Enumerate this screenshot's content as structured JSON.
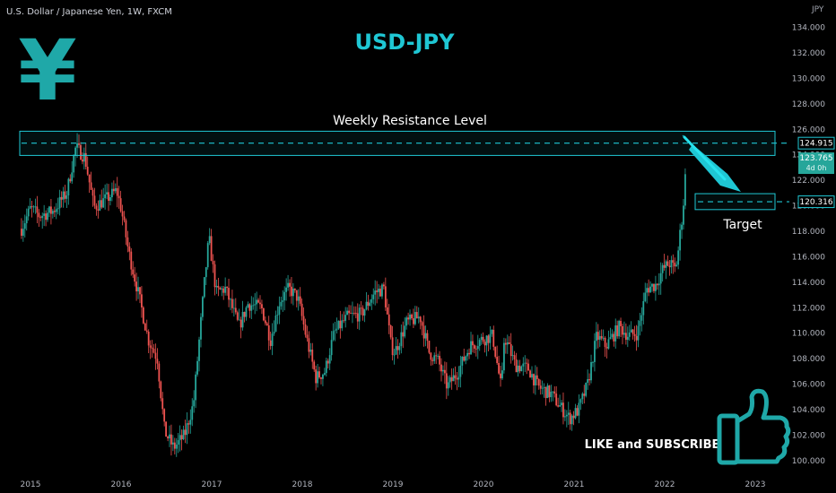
{
  "header": {
    "symbol_label": "U.S. Dollar / Japanese Yen, 1W, FXCM",
    "title": "USD-JPY",
    "logo_glyph": "¥",
    "logo_icon": "yen-icon"
  },
  "annotations": {
    "resistance_label": "Weekly Resistance Level",
    "target_label": "Target",
    "cta_label": "LIKE and SUBSCRIBE",
    "cta_icon": "thumbs-up-icon"
  },
  "colors": {
    "background": "#000000",
    "accent": "#1fc7d4",
    "up": "#26a69a",
    "down": "#ef5350",
    "axis_text": "#b2b5be",
    "last_price_bg": "#26a69a"
  },
  "chart_data": {
    "type": "candlestick",
    "instrument": "USD/JPY",
    "timeframe": "1W",
    "currency": "JPY",
    "x_axis": {
      "ticks": [
        "2015",
        "2016",
        "2017",
        "2018",
        "2019",
        "2020",
        "2021",
        "2022",
        "2023"
      ]
    },
    "y_axis": {
      "position": "right",
      "ylim": [
        99.5,
        134.6
      ],
      "ticks": [
        "100.000",
        "102.000",
        "104.000",
        "106.000",
        "108.000",
        "110.000",
        "112.000",
        "114.000",
        "116.000",
        "118.000",
        "120.000",
        "122.000",
        "124.000",
        "126.000",
        "128.000",
        "130.000",
        "132.000",
        "134.000"
      ]
    },
    "price_labels": {
      "resistance": "124.915",
      "target": "120.316",
      "last": "123.765",
      "countdown": "4d 0h"
    },
    "levels": {
      "resistance": 124.915,
      "resistance_zone": [
        123.95,
        125.85
      ],
      "target": 120.316,
      "target_zone": [
        119.7,
        120.95
      ]
    },
    "price_path": [
      [
        2014.9,
        118.2
      ],
      [
        2015.0,
        119.8
      ],
      [
        2015.1,
        119.2
      ],
      [
        2015.25,
        119.6
      ],
      [
        2015.4,
        121.0
      ],
      [
        2015.5,
        124.6
      ],
      [
        2015.6,
        123.8
      ],
      [
        2015.7,
        119.9
      ],
      [
        2015.85,
        120.6
      ],
      [
        2015.95,
        121.2
      ],
      [
        2016.0,
        119.8
      ],
      [
        2016.08,
        116.5
      ],
      [
        2016.2,
        112.8
      ],
      [
        2016.3,
        109.5
      ],
      [
        2016.4,
        108.0
      ],
      [
        2016.48,
        102.3
      ],
      [
        2016.58,
        101.0
      ],
      [
        2016.7,
        102.0
      ],
      [
        2016.8,
        104.5
      ],
      [
        2016.85,
        108.5
      ],
      [
        2016.92,
        114.0
      ],
      [
        2016.97,
        117.5
      ],
      [
        2017.05,
        113.2
      ],
      [
        2017.15,
        113.5
      ],
      [
        2017.3,
        110.5
      ],
      [
        2017.4,
        112.3
      ],
      [
        2017.55,
        112.0
      ],
      [
        2017.65,
        109.5
      ],
      [
        2017.75,
        112.5
      ],
      [
        2017.85,
        113.5
      ],
      [
        2017.95,
        112.8
      ],
      [
        2018.05,
        109.5
      ],
      [
        2018.15,
        106.5
      ],
      [
        2018.25,
        107.0
      ],
      [
        2018.35,
        110.0
      ],
      [
        2018.5,
        111.3
      ],
      [
        2018.65,
        111.5
      ],
      [
        2018.8,
        113.2
      ],
      [
        2018.9,
        113.5
      ],
      [
        2018.98,
        109.0
      ],
      [
        2019.02,
        108.5
      ],
      [
        2019.15,
        110.8
      ],
      [
        2019.3,
        111.3
      ],
      [
        2019.4,
        108.5
      ],
      [
        2019.5,
        107.8
      ],
      [
        2019.6,
        105.8
      ],
      [
        2019.72,
        107.0
      ],
      [
        2019.85,
        109.0
      ],
      [
        2019.98,
        109.5
      ],
      [
        2020.1,
        109.8
      ],
      [
        2020.2,
        105.5
      ],
      [
        2020.23,
        109.8
      ],
      [
        2020.35,
        107.5
      ],
      [
        2020.5,
        107.2
      ],
      [
        2020.6,
        105.8
      ],
      [
        2020.75,
        105.2
      ],
      [
        2020.85,
        104.2
      ],
      [
        2020.95,
        103.3
      ],
      [
        2021.05,
        104.0
      ],
      [
        2021.15,
        106.0
      ],
      [
        2021.25,
        109.8
      ],
      [
        2021.35,
        109.0
      ],
      [
        2021.5,
        110.5
      ],
      [
        2021.6,
        109.8
      ],
      [
        2021.7,
        110.0
      ],
      [
        2021.8,
        113.5
      ],
      [
        2021.9,
        113.8
      ],
      [
        2021.98,
        115.0
      ],
      [
        2022.05,
        115.5
      ],
      [
        2022.12,
        115.0
      ],
      [
        2022.15,
        116.5
      ],
      [
        2022.18,
        118.5
      ],
      [
        2022.2,
        119.5
      ],
      [
        2022.22,
        121.5
      ],
      [
        2022.24,
        123.765
      ]
    ]
  }
}
